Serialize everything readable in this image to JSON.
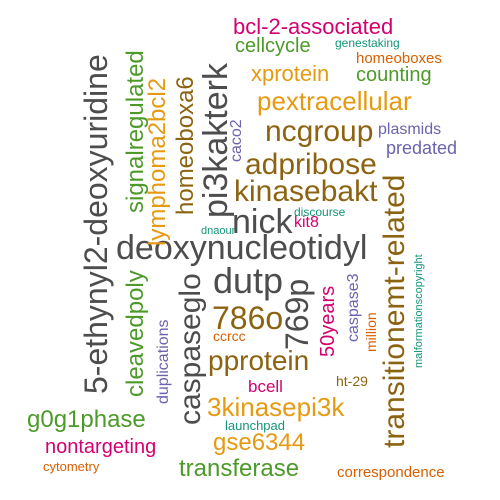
{
  "colors": {
    "gray": "#4d4d4d",
    "brown": "#8c6411",
    "gold": "#e59a12",
    "green": "#4d9a2a",
    "magenta": "#d4006f",
    "purple": "#6b63ad",
    "teal": "#169479",
    "orange": "#d95f02"
  },
  "words": [
    {
      "text": "bcl-2-associated",
      "color": "magenta"
    },
    {
      "text": "cellcycle",
      "color": "green"
    },
    {
      "text": "genestaking",
      "color": "teal"
    },
    {
      "text": "homeoboxes",
      "color": "orange"
    },
    {
      "text": "xprotein",
      "color": "gold"
    },
    {
      "text": "counting",
      "color": "green"
    },
    {
      "text": "pextracellular",
      "color": "gold"
    },
    {
      "text": "ncgroup",
      "color": "brown"
    },
    {
      "text": "plasmids",
      "color": "purple"
    },
    {
      "text": "predated",
      "color": "purple"
    },
    {
      "text": "adpribose",
      "color": "brown"
    },
    {
      "text": "kinasebakt",
      "color": "brown"
    },
    {
      "text": "nick",
      "color": "gray"
    },
    {
      "text": "kit8",
      "color": "magenta"
    },
    {
      "text": "discourse",
      "color": "teal"
    },
    {
      "text": "dnaour",
      "color": "teal"
    },
    {
      "text": "deoxynucleotidyl",
      "color": "gray"
    },
    {
      "text": "dutp",
      "color": "gray"
    },
    {
      "text": "786o",
      "color": "brown"
    },
    {
      "text": "ccrcc",
      "color": "orange"
    },
    {
      "text": "pprotein",
      "color": "brown"
    },
    {
      "text": "bcell",
      "color": "magenta"
    },
    {
      "text": "ht-29",
      "color": "brown"
    },
    {
      "text": "3kinasepi3k",
      "color": "gold"
    },
    {
      "text": "g0g1phase",
      "color": "green"
    },
    {
      "text": "launchpad",
      "color": "teal"
    },
    {
      "text": "nontargeting",
      "color": "magenta"
    },
    {
      "text": "gse6344",
      "color": "gold"
    },
    {
      "text": "cytometry",
      "color": "orange"
    },
    {
      "text": "transferase",
      "color": "green"
    },
    {
      "text": "correspondence",
      "color": "orange"
    },
    {
      "text": "5-ethynyl2-deoxyuridine",
      "color": "gray"
    },
    {
      "text": "signalregulated",
      "color": "green"
    },
    {
      "text": "lymphoma2bcl2",
      "color": "gold"
    },
    {
      "text": "homeoboxa6",
      "color": "brown"
    },
    {
      "text": "pi3kakterk",
      "color": "gray"
    },
    {
      "text": "caco2",
      "color": "purple"
    },
    {
      "text": "cleavedpoly",
      "color": "green"
    },
    {
      "text": "duplications",
      "color": "purple"
    },
    {
      "text": "caspaseglo",
      "color": "gray"
    },
    {
      "text": "769p",
      "color": "gray"
    },
    {
      "text": "50years",
      "color": "magenta"
    },
    {
      "text": "caspase3",
      "color": "purple"
    },
    {
      "text": "million",
      "color": "orange"
    },
    {
      "text": "transitionemt-related",
      "color": "brown"
    },
    {
      "text": "malformationscopyright",
      "color": "teal"
    }
  ]
}
